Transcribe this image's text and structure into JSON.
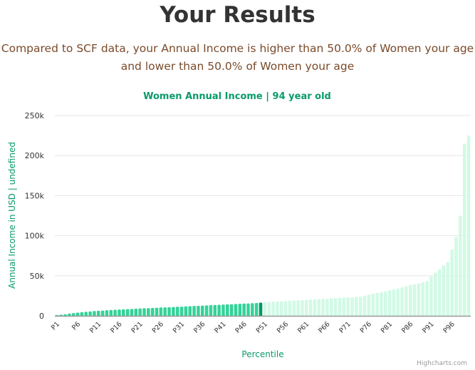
{
  "header": {
    "title": "Your Results",
    "subtitle_line1": "Compared to SCF data, your Annual Income is higher than 50.0% of Women your age",
    "subtitle_line2": "and lower than 50.0% of Women your age"
  },
  "credit": "Highcharts.com",
  "colors": {
    "below": "#34d399",
    "highlight": "#059669",
    "above": "#d1fae5",
    "title": "#0a9a6a"
  },
  "chart_data": {
    "type": "bar",
    "title": "Women Annual Income | 94 year old",
    "xlabel": "Percentile",
    "ylabel": "Annual Income in USD | undefined",
    "ylim": [
      0,
      250000
    ],
    "yticks": [
      {
        "v": 0,
        "label": "0"
      },
      {
        "v": 50000,
        "label": "50k"
      },
      {
        "v": 100000,
        "label": "100k"
      },
      {
        "v": 150000,
        "label": "150k"
      },
      {
        "v": 200000,
        "label": "200k"
      },
      {
        "v": 250000,
        "label": "250k"
      }
    ],
    "grid": true,
    "highlight_percentile": "P50",
    "xtick_labels": [
      "P1",
      "P6",
      "P11",
      "P16",
      "P21",
      "P26",
      "P31",
      "P36",
      "P41",
      "P46",
      "P51",
      "P56",
      "P61",
      "P66",
      "P71",
      "P76",
      "P81",
      "P86",
      "P91",
      "P96"
    ],
    "values": [
      1000,
      1500,
      2000,
      2800,
      3400,
      4000,
      4600,
      5000,
      5500,
      6000,
      6300,
      6600,
      7000,
      7300,
      7600,
      7900,
      8100,
      8300,
      8600,
      8900,
      9200,
      9400,
      9600,
      9900,
      10100,
      10400,
      10600,
      10800,
      11000,
      11300,
      11500,
      11800,
      12000,
      12300,
      12500,
      12800,
      13000,
      13300,
      13500,
      13800,
      14000,
      14300,
      14500,
      14800,
      15000,
      15300,
      15500,
      15800,
      16000,
      16500,
      17000,
      17300,
      17600,
      17900,
      18200,
      18500,
      18800,
      19100,
      19400,
      19700,
      20000,
      20300,
      20600,
      20900,
      21200,
      21500,
      21800,
      22100,
      22400,
      22700,
      23000,
      23300,
      23600,
      24000,
      25000,
      26500,
      27500,
      28500,
      29500,
      30500,
      32000,
      33000,
      34000,
      35500,
      37000,
      38500,
      39500,
      40500,
      42000,
      43500,
      49000,
      54000,
      58000,
      63000,
      67000,
      83000,
      98000,
      125000,
      215000,
      225000
    ]
  }
}
